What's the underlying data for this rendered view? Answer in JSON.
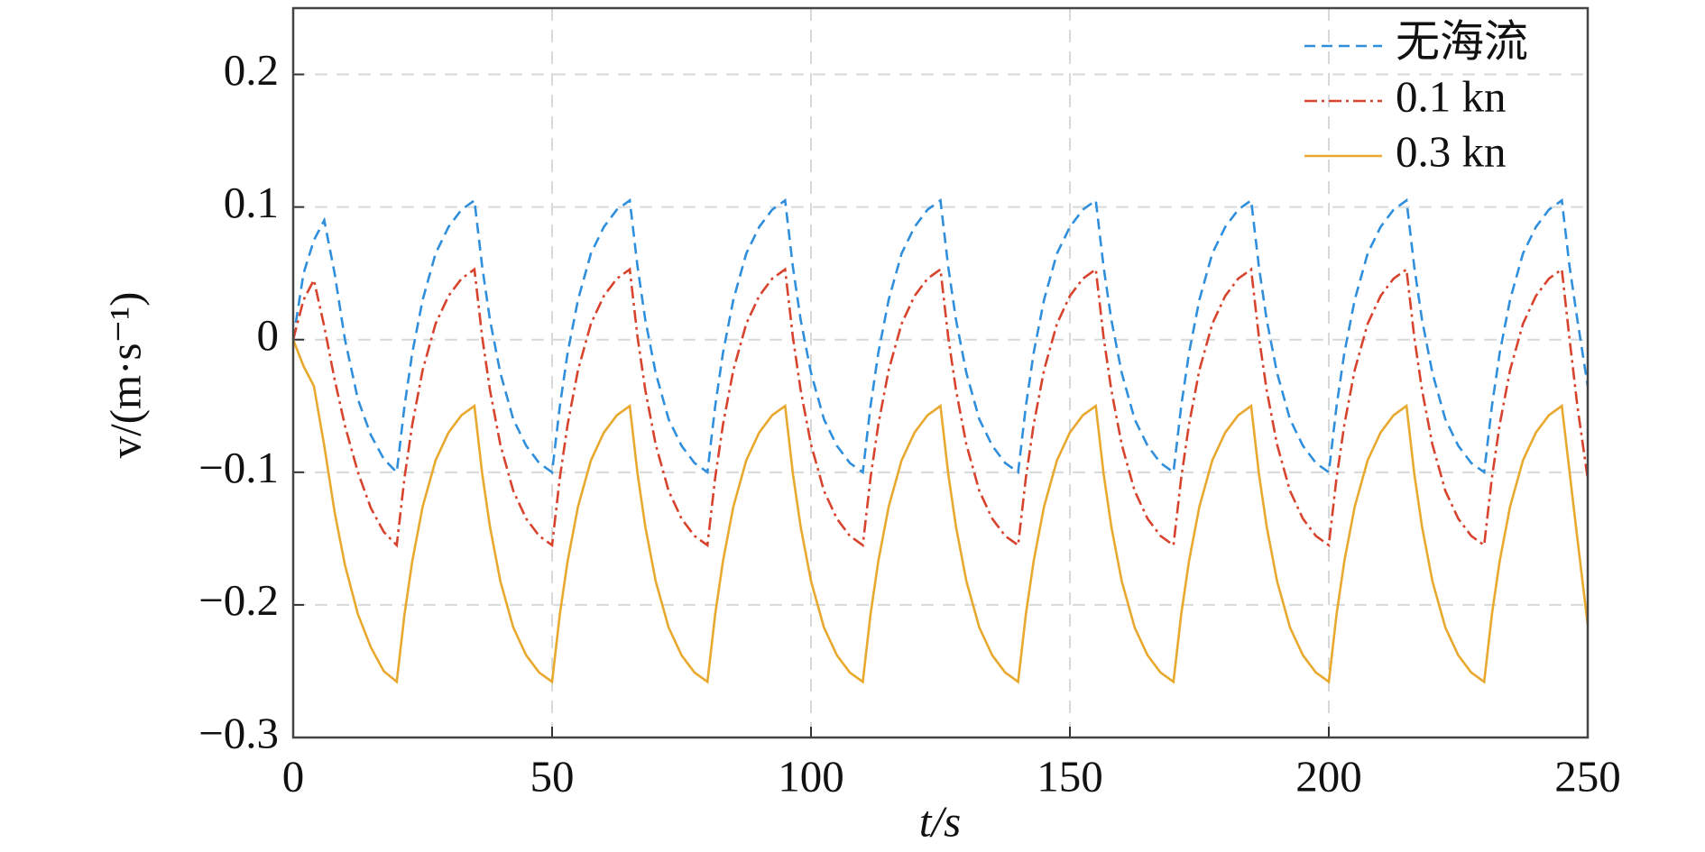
{
  "chart_data": {
    "type": "line",
    "xlabel": "t/s",
    "ylabel": "v/(m·s⁻¹)",
    "x": [
      0,
      2,
      4,
      6,
      8,
      10,
      12.5,
      15,
      17.5,
      20,
      21.5,
      23,
      25,
      27.5,
      30,
      32.5,
      35,
      36.5,
      38,
      40,
      42.5,
      45,
      47.5,
      50,
      51.5,
      53,
      55,
      57.5,
      60,
      62.5,
      65,
      66.5,
      68,
      70,
      72.5,
      75,
      77.5,
      80,
      81.5,
      83,
      85,
      87.5,
      90,
      92.5,
      95,
      96.5,
      98,
      100,
      102.5,
      105,
      107.5,
      110,
      111.5,
      113,
      115,
      117.5,
      120,
      122.5,
      125,
      126.5,
      128,
      130,
      132.5,
      135,
      137.5,
      140,
      141.5,
      143,
      145,
      147.5,
      150,
      152.5,
      155,
      156.5,
      158,
      160,
      162.5,
      165,
      167.5,
      170,
      171.5,
      173,
      175,
      177.5,
      180,
      182.5,
      185,
      186.5,
      188,
      190,
      192.5,
      195,
      197.5,
      200,
      201.5,
      203,
      205,
      207.5,
      210,
      212.5,
      215,
      216.5,
      218,
      220,
      222.5,
      225,
      227.5,
      230,
      231.5,
      233,
      235,
      237.5,
      240,
      242.5,
      245,
      246.5,
      248,
      250
    ],
    "series": [
      {
        "name": "无海流",
        "color": "#2f8fdc",
        "linestyle": "dashed",
        "values": [
          0,
          0.05,
          0.075,
          0.09,
          0.05,
          0.0,
          -0.045,
          -0.072,
          -0.09,
          -0.1,
          -0.05,
          -0.01,
          0.03,
          0.065,
          0.085,
          0.098,
          0.105,
          0.055,
          0.015,
          -0.025,
          -0.06,
          -0.08,
          -0.093,
          -0.1,
          -0.05,
          -0.01,
          0.03,
          0.065,
          0.085,
          0.098,
          0.105,
          0.055,
          0.015,
          -0.025,
          -0.06,
          -0.08,
          -0.093,
          -0.1,
          -0.05,
          -0.01,
          0.03,
          0.065,
          0.085,
          0.098,
          0.105,
          0.055,
          0.015,
          -0.025,
          -0.06,
          -0.08,
          -0.093,
          -0.1,
          -0.05,
          -0.01,
          0.03,
          0.065,
          0.085,
          0.098,
          0.105,
          0.055,
          0.015,
          -0.025,
          -0.06,
          -0.08,
          -0.093,
          -0.1,
          -0.05,
          -0.01,
          0.03,
          0.065,
          0.085,
          0.098,
          0.105,
          0.055,
          0.015,
          -0.025,
          -0.06,
          -0.08,
          -0.093,
          -0.1,
          -0.05,
          -0.01,
          0.03,
          0.065,
          0.085,
          0.098,
          0.105,
          0.055,
          0.015,
          -0.025,
          -0.06,
          -0.08,
          -0.093,
          -0.1,
          -0.05,
          -0.01,
          0.03,
          0.065,
          0.085,
          0.098,
          0.105,
          0.055,
          0.015,
          -0.025,
          -0.06,
          -0.08,
          -0.093,
          -0.1,
          -0.05,
          -0.01,
          0.03,
          0.065,
          0.085,
          0.098,
          0.105,
          0.055,
          0.015,
          -0.035
        ]
      },
      {
        "name": "0.1 kn",
        "color": "#d8432e",
        "linestyle": "dashdot",
        "values": [
          0,
          0.03,
          0.045,
          0.01,
          -0.03,
          -0.065,
          -0.1,
          -0.127,
          -0.145,
          -0.155,
          -0.104,
          -0.064,
          -0.023,
          0.012,
          0.033,
          0.046,
          0.053,
          0.002,
          -0.038,
          -0.079,
          -0.114,
          -0.135,
          -0.148,
          -0.155,
          -0.104,
          -0.064,
          -0.023,
          0.012,
          0.033,
          0.046,
          0.053,
          0.002,
          -0.038,
          -0.079,
          -0.114,
          -0.135,
          -0.148,
          -0.155,
          -0.104,
          -0.064,
          -0.023,
          0.012,
          0.033,
          0.046,
          0.053,
          0.002,
          -0.038,
          -0.079,
          -0.114,
          -0.135,
          -0.148,
          -0.155,
          -0.104,
          -0.064,
          -0.023,
          0.012,
          0.033,
          0.046,
          0.053,
          0.002,
          -0.038,
          -0.079,
          -0.114,
          -0.135,
          -0.148,
          -0.155,
          -0.104,
          -0.064,
          -0.023,
          0.012,
          0.033,
          0.046,
          0.053,
          0.002,
          -0.038,
          -0.079,
          -0.114,
          -0.135,
          -0.148,
          -0.155,
          -0.104,
          -0.064,
          -0.023,
          0.012,
          0.033,
          0.046,
          0.053,
          0.002,
          -0.038,
          -0.079,
          -0.114,
          -0.135,
          -0.148,
          -0.155,
          -0.104,
          -0.064,
          -0.023,
          0.012,
          0.033,
          0.046,
          0.053,
          0.002,
          -0.038,
          -0.079,
          -0.114,
          -0.135,
          -0.148,
          -0.155,
          -0.104,
          -0.064,
          -0.023,
          0.012,
          0.033,
          0.046,
          0.053,
          0.0,
          -0.05,
          -0.105
        ]
      },
      {
        "name": "0.3 kn",
        "color": "#e8a92e",
        "linestyle": "solid",
        "values": [
          0,
          -0.02,
          -0.035,
          -0.08,
          -0.13,
          -0.17,
          -0.207,
          -0.232,
          -0.25,
          -0.258,
          -0.207,
          -0.167,
          -0.126,
          -0.091,
          -0.07,
          -0.057,
          -0.05,
          -0.101,
          -0.141,
          -0.182,
          -0.217,
          -0.238,
          -0.251,
          -0.258,
          -0.207,
          -0.167,
          -0.126,
          -0.091,
          -0.07,
          -0.057,
          -0.05,
          -0.101,
          -0.141,
          -0.182,
          -0.217,
          -0.238,
          -0.251,
          -0.258,
          -0.207,
          -0.167,
          -0.126,
          -0.091,
          -0.07,
          -0.057,
          -0.05,
          -0.101,
          -0.141,
          -0.182,
          -0.217,
          -0.238,
          -0.251,
          -0.258,
          -0.207,
          -0.167,
          -0.126,
          -0.091,
          -0.07,
          -0.057,
          -0.05,
          -0.101,
          -0.141,
          -0.182,
          -0.217,
          -0.238,
          -0.251,
          -0.258,
          -0.207,
          -0.167,
          -0.126,
          -0.091,
          -0.07,
          -0.057,
          -0.05,
          -0.101,
          -0.141,
          -0.182,
          -0.217,
          -0.238,
          -0.251,
          -0.258,
          -0.207,
          -0.167,
          -0.126,
          -0.091,
          -0.07,
          -0.057,
          -0.05,
          -0.101,
          -0.141,
          -0.182,
          -0.217,
          -0.238,
          -0.251,
          -0.258,
          -0.207,
          -0.167,
          -0.126,
          -0.091,
          -0.07,
          -0.057,
          -0.05,
          -0.101,
          -0.141,
          -0.182,
          -0.217,
          -0.238,
          -0.251,
          -0.258,
          -0.207,
          -0.167,
          -0.126,
          -0.091,
          -0.07,
          -0.057,
          -0.05,
          -0.1,
          -0.15,
          -0.215
        ]
      }
    ],
    "xlim": [
      0,
      250
    ],
    "xticks": [
      0,
      50,
      100,
      150,
      200,
      250
    ],
    "ylim": [
      -0.3,
      0.25
    ],
    "yticks": [
      {
        "value": -0.3,
        "label": "−0.3"
      },
      {
        "value": -0.2,
        "label": "−0.2"
      },
      {
        "value": -0.1,
        "label": "−0.1"
      },
      0,
      0.1,
      0.2
    ],
    "grid": true,
    "legend": "upper right"
  }
}
